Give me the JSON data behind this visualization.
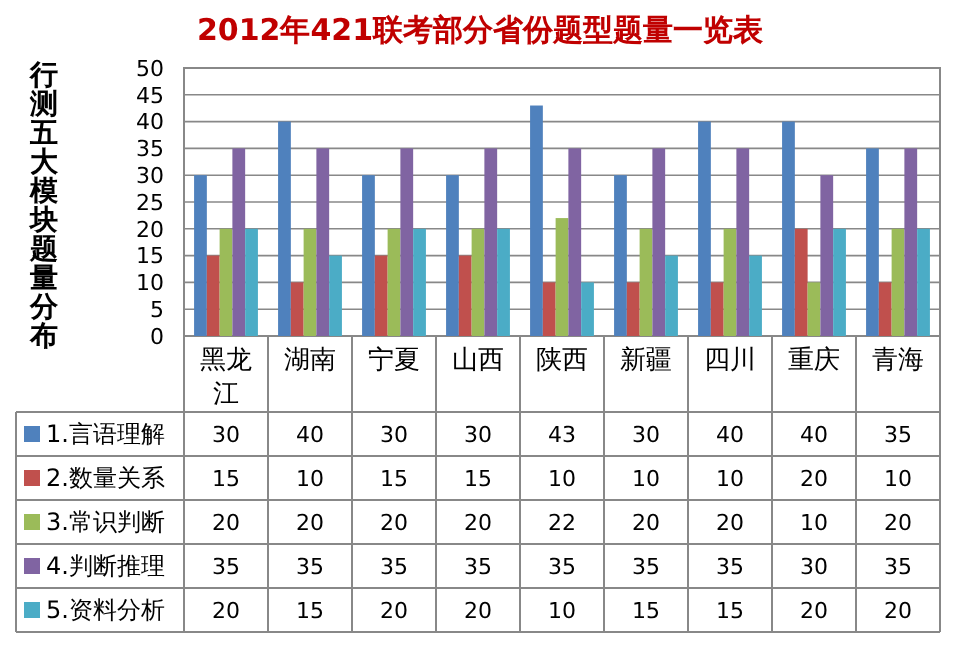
{
  "chart_data": {
    "type": "bar",
    "title": "2012年421联考部分省份题型题量一览表",
    "ylabel": "行测五大模块题量分布",
    "categories": [
      "黑龙江",
      "湖南",
      "宁夏",
      "山西",
      "陕西",
      "新疆",
      "四川",
      "重庆",
      "青海"
    ],
    "series": [
      {
        "name": "1.言语理解",
        "color": "#4f81bd",
        "values": [
          30,
          40,
          30,
          30,
          43,
          30,
          40,
          40,
          35
        ]
      },
      {
        "name": "2.数量关系",
        "color": "#c0504d",
        "values": [
          15,
          10,
          15,
          15,
          10,
          10,
          10,
          20,
          10
        ]
      },
      {
        "name": "3.常识判断",
        "color": "#9bbb59",
        "values": [
          20,
          20,
          20,
          20,
          22,
          20,
          20,
          10,
          20
        ]
      },
      {
        "name": "4.判断推理",
        "color": "#8064a2",
        "values": [
          35,
          35,
          35,
          35,
          35,
          35,
          35,
          30,
          35
        ]
      },
      {
        "name": "5.资料分析",
        "color": "#4bacc6",
        "values": [
          20,
          15,
          20,
          20,
          10,
          15,
          15,
          20,
          20
        ]
      }
    ],
    "ylim": [
      0,
      50
    ],
    "yticks": [
      0,
      5,
      10,
      15,
      20,
      25,
      30,
      35,
      40,
      45,
      50
    ],
    "grid": "y",
    "legend": "bottom",
    "data_labels": true
  }
}
